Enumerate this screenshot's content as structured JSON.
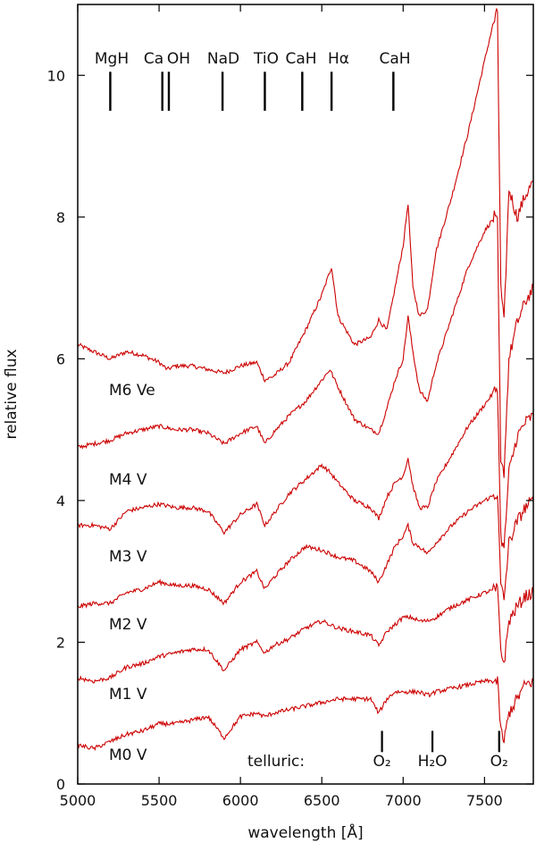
{
  "chart_data": {
    "type": "line",
    "xlabel": "wavelength [Å]",
    "ylabel": "relative flux",
    "xlim": [
      5000,
      7800
    ],
    "ylim": [
      0,
      11
    ],
    "x_ticks": [
      5000,
      5500,
      6000,
      6500,
      7000,
      7500
    ],
    "y_ticks": [
      0,
      2,
      4,
      6,
      8,
      10
    ],
    "grid": false,
    "line_color": "#cc0000",
    "spectral_lines": [
      {
        "label": "MgH",
        "x": 5200
      },
      {
        "label": "Ca",
        "x": 5520
      },
      {
        "label": "OH",
        "x": 5560
      },
      {
        "label": "NaD",
        "x": 5890
      },
      {
        "label": "TiO",
        "x": 6150
      },
      {
        "label": "CaH",
        "x": 6380
      },
      {
        "label": "Hα",
        "x": 6560
      },
      {
        "label": "CaH",
        "x": 6940
      }
    ],
    "telluric": {
      "label": "telluric:",
      "lines": [
        {
          "label": "O₂",
          "x": 6870
        },
        {
          "label": "H₂O",
          "x": 7180
        },
        {
          "label": "O₂",
          "x": 7590
        }
      ]
    },
    "series": [
      {
        "name": "M6 Ve",
        "points": [
          [
            5000,
            6.2
          ],
          [
            5100,
            6.1
          ],
          [
            5200,
            6.0
          ],
          [
            5300,
            6.1
          ],
          [
            5400,
            6.05
          ],
          [
            5500,
            5.95
          ],
          [
            5550,
            5.85
          ],
          [
            5600,
            5.9
          ],
          [
            5700,
            5.9
          ],
          [
            5800,
            5.85
          ],
          [
            5900,
            5.8
          ],
          [
            6000,
            5.9
          ],
          [
            6100,
            5.95
          ],
          [
            6150,
            5.7
          ],
          [
            6200,
            5.75
          ],
          [
            6300,
            5.95
          ],
          [
            6400,
            6.4
          ],
          [
            6500,
            6.9
          ],
          [
            6560,
            7.3
          ],
          [
            6600,
            6.6
          ],
          [
            6700,
            6.2
          ],
          [
            6800,
            6.3
          ],
          [
            6850,
            6.55
          ],
          [
            6900,
            6.4
          ],
          [
            6950,
            7.0
          ],
          [
            7000,
            7.6
          ],
          [
            7030,
            8.2
          ],
          [
            7060,
            7.0
          ],
          [
            7100,
            6.6
          ],
          [
            7150,
            6.7
          ],
          [
            7200,
            7.5
          ],
          [
            7300,
            8.3
          ],
          [
            7400,
            9.2
          ],
          [
            7500,
            10.2
          ],
          [
            7550,
            10.7
          ],
          [
            7580,
            10.9
          ],
          [
            7600,
            7.0
          ],
          [
            7620,
            6.5
          ],
          [
            7650,
            8.4
          ],
          [
            7700,
            8.0
          ],
          [
            7750,
            8.3
          ],
          [
            7800,
            8.5
          ]
        ]
      },
      {
        "name": "M4 V",
        "points": [
          [
            5000,
            4.75
          ],
          [
            5100,
            4.8
          ],
          [
            5200,
            4.85
          ],
          [
            5300,
            4.95
          ],
          [
            5400,
            5.0
          ],
          [
            5500,
            5.05
          ],
          [
            5600,
            5.0
          ],
          [
            5700,
            5.0
          ],
          [
            5800,
            4.95
          ],
          [
            5900,
            4.8
          ],
          [
            6000,
            4.95
          ],
          [
            6100,
            5.05
          ],
          [
            6150,
            4.8
          ],
          [
            6200,
            4.95
          ],
          [
            6300,
            5.2
          ],
          [
            6400,
            5.4
          ],
          [
            6500,
            5.7
          ],
          [
            6550,
            5.85
          ],
          [
            6600,
            5.6
          ],
          [
            6700,
            5.15
          ],
          [
            6800,
            5.0
          ],
          [
            6850,
            4.95
          ],
          [
            6900,
            5.3
          ],
          [
            6950,
            5.7
          ],
          [
            7000,
            6.0
          ],
          [
            7030,
            6.6
          ],
          [
            7060,
            6.1
          ],
          [
            7100,
            5.55
          ],
          [
            7150,
            5.4
          ],
          [
            7200,
            5.9
          ],
          [
            7300,
            6.6
          ],
          [
            7400,
            7.3
          ],
          [
            7500,
            7.8
          ],
          [
            7560,
            8.0
          ],
          [
            7580,
            7.9
          ],
          [
            7600,
            4.5
          ],
          [
            7620,
            4.4
          ],
          [
            7650,
            6.0
          ],
          [
            7700,
            6.5
          ],
          [
            7750,
            6.8
          ],
          [
            7800,
            7.0
          ]
        ]
      },
      {
        "name": "M3 V",
        "points": [
          [
            5000,
            3.65
          ],
          [
            5100,
            3.65
          ],
          [
            5200,
            3.6
          ],
          [
            5300,
            3.85
          ],
          [
            5400,
            3.9
          ],
          [
            5500,
            3.95
          ],
          [
            5600,
            3.9
          ],
          [
            5700,
            3.9
          ],
          [
            5800,
            3.85
          ],
          [
            5900,
            3.55
          ],
          [
            6000,
            3.8
          ],
          [
            6100,
            3.95
          ],
          [
            6150,
            3.65
          ],
          [
            6200,
            3.8
          ],
          [
            6300,
            4.1
          ],
          [
            6400,
            4.3
          ],
          [
            6500,
            4.5
          ],
          [
            6550,
            4.4
          ],
          [
            6600,
            4.25
          ],
          [
            6700,
            4.0
          ],
          [
            6800,
            3.9
          ],
          [
            6850,
            3.75
          ],
          [
            6900,
            4.05
          ],
          [
            6950,
            4.25
          ],
          [
            7000,
            4.35
          ],
          [
            7030,
            4.6
          ],
          [
            7060,
            4.2
          ],
          [
            7100,
            3.9
          ],
          [
            7150,
            3.9
          ],
          [
            7200,
            4.25
          ],
          [
            7300,
            4.65
          ],
          [
            7400,
            5.05
          ],
          [
            7500,
            5.35
          ],
          [
            7580,
            5.6
          ],
          [
            7600,
            3.5
          ],
          [
            7620,
            3.3
          ],
          [
            7650,
            4.4
          ],
          [
            7700,
            4.9
          ],
          [
            7750,
            5.1
          ],
          [
            7800,
            5.2
          ]
        ]
      },
      {
        "name": "M2 V",
        "points": [
          [
            5000,
            2.5
          ],
          [
            5100,
            2.55
          ],
          [
            5200,
            2.55
          ],
          [
            5300,
            2.7
          ],
          [
            5400,
            2.75
          ],
          [
            5500,
            2.85
          ],
          [
            5600,
            2.8
          ],
          [
            5700,
            2.8
          ],
          [
            5800,
            2.75
          ],
          [
            5900,
            2.55
          ],
          [
            6000,
            2.85
          ],
          [
            6100,
            3.0
          ],
          [
            6150,
            2.75
          ],
          [
            6200,
            2.9
          ],
          [
            6300,
            3.15
          ],
          [
            6400,
            3.35
          ],
          [
            6500,
            3.3
          ],
          [
            6550,
            3.25
          ],
          [
            6600,
            3.2
          ],
          [
            6700,
            3.15
          ],
          [
            6800,
            3.0
          ],
          [
            6850,
            2.85
          ],
          [
            6900,
            3.1
          ],
          [
            6950,
            3.35
          ],
          [
            7000,
            3.5
          ],
          [
            7030,
            3.65
          ],
          [
            7060,
            3.4
          ],
          [
            7100,
            3.35
          ],
          [
            7150,
            3.25
          ],
          [
            7200,
            3.4
          ],
          [
            7300,
            3.65
          ],
          [
            7400,
            3.85
          ],
          [
            7500,
            4.0
          ],
          [
            7580,
            4.1
          ],
          [
            7600,
            2.8
          ],
          [
            7620,
            2.6
          ],
          [
            7650,
            3.4
          ],
          [
            7700,
            3.7
          ],
          [
            7750,
            3.9
          ],
          [
            7800,
            4.0
          ]
        ]
      },
      {
        "name": "M1 V",
        "points": [
          [
            5000,
            1.5
          ],
          [
            5100,
            1.45
          ],
          [
            5200,
            1.5
          ],
          [
            5300,
            1.65
          ],
          [
            5400,
            1.7
          ],
          [
            5500,
            1.8
          ],
          [
            5600,
            1.85
          ],
          [
            5700,
            1.9
          ],
          [
            5800,
            1.9
          ],
          [
            5900,
            1.6
          ],
          [
            6000,
            1.9
          ],
          [
            6100,
            2.0
          ],
          [
            6150,
            1.85
          ],
          [
            6200,
            1.95
          ],
          [
            6300,
            2.05
          ],
          [
            6400,
            2.2
          ],
          [
            6500,
            2.3
          ],
          [
            6550,
            2.25
          ],
          [
            6600,
            2.2
          ],
          [
            6700,
            2.15
          ],
          [
            6800,
            2.1
          ],
          [
            6850,
            1.95
          ],
          [
            6900,
            2.15
          ],
          [
            6950,
            2.25
          ],
          [
            7000,
            2.35
          ],
          [
            7050,
            2.35
          ],
          [
            7100,
            2.3
          ],
          [
            7150,
            2.3
          ],
          [
            7200,
            2.35
          ],
          [
            7300,
            2.5
          ],
          [
            7400,
            2.6
          ],
          [
            7500,
            2.7
          ],
          [
            7580,
            2.75
          ],
          [
            7600,
            1.9
          ],
          [
            7620,
            1.7
          ],
          [
            7650,
            2.3
          ],
          [
            7700,
            2.5
          ],
          [
            7750,
            2.65
          ],
          [
            7800,
            2.7
          ]
        ]
      },
      {
        "name": "M0 V",
        "points": [
          [
            5000,
            0.55
          ],
          [
            5100,
            0.5
          ],
          [
            5200,
            0.6
          ],
          [
            5300,
            0.7
          ],
          [
            5400,
            0.75
          ],
          [
            5500,
            0.85
          ],
          [
            5600,
            0.85
          ],
          [
            5700,
            0.9
          ],
          [
            5800,
            0.95
          ],
          [
            5900,
            0.65
          ],
          [
            6000,
            0.95
          ],
          [
            6100,
            1.0
          ],
          [
            6150,
            0.95
          ],
          [
            6200,
            1.0
          ],
          [
            6300,
            1.05
          ],
          [
            6400,
            1.1
          ],
          [
            6500,
            1.15
          ],
          [
            6600,
            1.2
          ],
          [
            6700,
            1.2
          ],
          [
            6800,
            1.2
          ],
          [
            6850,
            1.0
          ],
          [
            6900,
            1.2
          ],
          [
            6950,
            1.3
          ],
          [
            7000,
            1.3
          ],
          [
            7100,
            1.3
          ],
          [
            7150,
            1.25
          ],
          [
            7200,
            1.3
          ],
          [
            7300,
            1.35
          ],
          [
            7400,
            1.4
          ],
          [
            7500,
            1.45
          ],
          [
            7580,
            1.45
          ],
          [
            7600,
            0.75
          ],
          [
            7620,
            0.6
          ],
          [
            7650,
            1.0
          ],
          [
            7700,
            1.2
          ],
          [
            7750,
            1.4
          ],
          [
            7800,
            1.45
          ]
        ]
      }
    ]
  }
}
